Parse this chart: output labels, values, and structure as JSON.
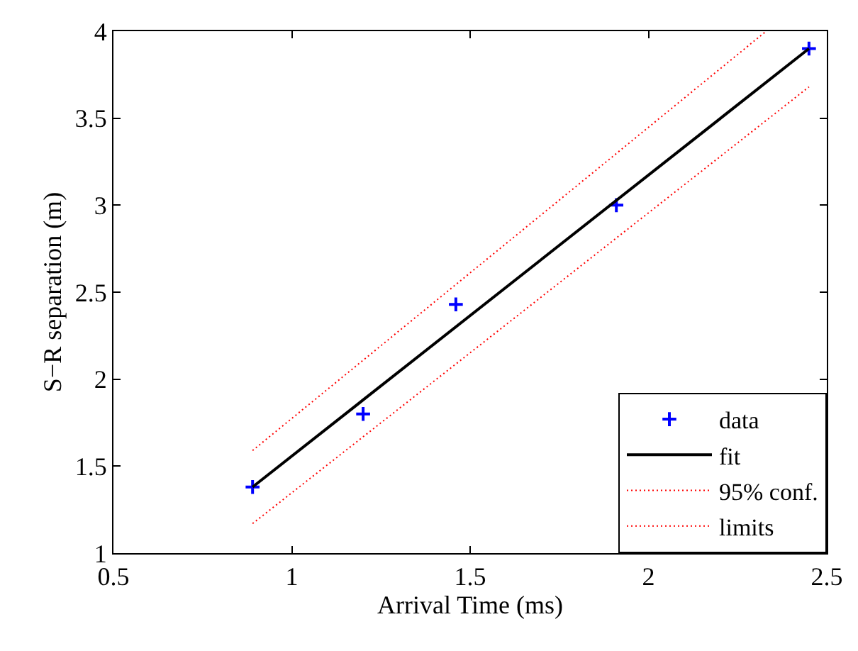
{
  "chart_data": {
    "type": "scatter",
    "xlabel": "Arrival Time (ms)",
    "ylabel": "S−R separation (m)",
    "xlim": [
      0.5,
      2.5
    ],
    "xticks": [
      0.5,
      1,
      1.5,
      2,
      2.5
    ],
    "ylim": [
      1,
      4
    ],
    "yticks": [
      1,
      1.5,
      2,
      2.5,
      3,
      3.5,
      4
    ],
    "legend": "bottom right",
    "series": [
      {
        "name": "data",
        "marker": "cross",
        "color": "#0000ff",
        "x": [
          0.89,
          1.2,
          1.46,
          1.91,
          2.45
        ],
        "values": [
          1.38,
          1.8,
          2.43,
          3.0,
          3.9
        ]
      },
      {
        "name": "fit",
        "type": "line",
        "marker": "none",
        "line_style": "solid",
        "color": "#000000",
        "x": [
          0.89,
          2.45
        ],
        "values": [
          1.38,
          3.9
        ]
      },
      {
        "name": "95% conf.",
        "type": "line",
        "marker": "none",
        "line_style": "dotted",
        "color": "#ff0000",
        "x": [
          0.89,
          2.33
        ],
        "values": [
          1.59,
          4.0
        ]
      },
      {
        "name": "limits",
        "type": "line",
        "marker": "none",
        "line_style": "dotted",
        "color": "#ff0000",
        "x": [
          0.89,
          2.45
        ],
        "values": [
          1.17,
          3.68
        ]
      }
    ]
  }
}
